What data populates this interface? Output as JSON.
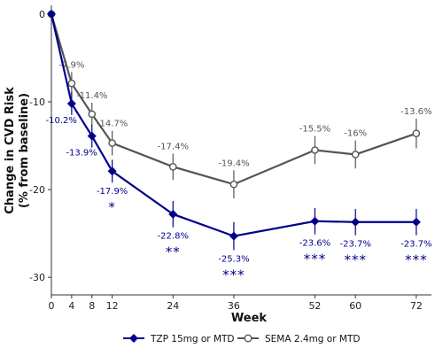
{
  "chart_data": {
    "type": "line",
    "xlabel": "Week",
    "ylabel_line1": "Change in CVD Risk",
    "ylabel_line2": "(% from baseline)",
    "xlim": [
      0,
      75
    ],
    "ylim": [
      -32,
      1
    ],
    "x_ticks": [
      0,
      4,
      8,
      12,
      24,
      36,
      52,
      60,
      72
    ],
    "y_ticks": [
      0,
      -10,
      -20,
      -30
    ],
    "grid": false,
    "legend_position": "bottom",
    "series": [
      {
        "name": "TZP 15mg or MTD",
        "color": "#00008b",
        "marker": "diamond",
        "x": [
          0,
          4,
          8,
          12,
          24,
          36,
          52,
          60,
          72
        ],
        "y": [
          0,
          -10.2,
          -13.9,
          -17.9,
          -22.8,
          -25.3,
          -23.6,
          -23.7,
          -23.7
        ],
        "err": [
          0,
          1.3,
          1.3,
          1.3,
          1.5,
          1.6,
          1.5,
          1.5,
          1.5
        ],
        "labels": [
          "",
          "-10.2%",
          "-13.9%",
          "-17.9%",
          "-22.8%",
          "-25.3%",
          "-23.6%",
          "-23.7%",
          "-23.7%"
        ],
        "significance": [
          "",
          "",
          "",
          "*",
          "**",
          "***",
          "***",
          "***",
          "***"
        ]
      },
      {
        "name": "SEMA 2.4mg or MTD",
        "color": "#555555",
        "marker": "open-circle",
        "x": [
          0,
          4,
          8,
          12,
          24,
          36,
          52,
          60,
          72
        ],
        "y": [
          0,
          -7.9,
          -11.4,
          -14.7,
          -17.4,
          -19.4,
          -15.5,
          -16.0,
          -13.6
        ],
        "err": [
          0,
          1.3,
          1.3,
          1.4,
          1.5,
          1.6,
          1.6,
          1.6,
          1.7
        ],
        "labels": [
          "",
          "-7.9%",
          "-11.4%",
          "-14.7%",
          "-17.4%",
          "-19.4%",
          "-15.5%",
          "-16%",
          "-13.6%"
        ]
      }
    ]
  }
}
